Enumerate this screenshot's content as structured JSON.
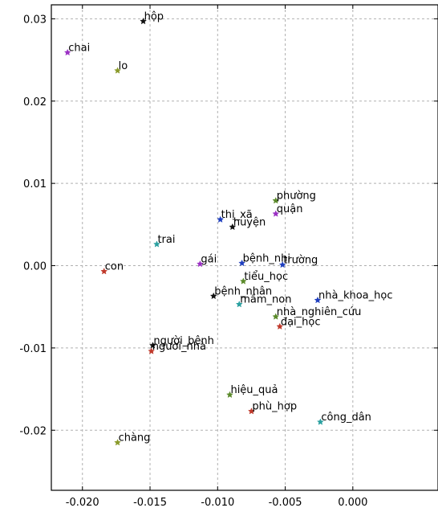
{
  "chart_data": {
    "type": "scatter",
    "title": "",
    "xlabel": "",
    "ylabel": "",
    "xlim": [
      -0.0223,
      0.0063
    ],
    "ylim": [
      -0.0273,
      0.0317
    ],
    "grid": true,
    "xticks": [
      {
        "value": -0.02,
        "label": "-0.020"
      },
      {
        "value": -0.015,
        "label": "-0.015"
      },
      {
        "value": -0.01,
        "label": "-0.010"
      },
      {
        "value": -0.005,
        "label": "-0.005"
      },
      {
        "value": 0.0,
        "label": "0.000"
      }
    ],
    "yticks": [
      {
        "value": 0.03,
        "label": "0.03"
      },
      {
        "value": 0.02,
        "label": "0.02"
      },
      {
        "value": 0.01,
        "label": "0.01"
      },
      {
        "value": 0.0,
        "label": "0.00"
      },
      {
        "value": -0.01,
        "label": "-0.01"
      },
      {
        "value": -0.02,
        "label": "-0.02"
      }
    ],
    "points": [
      {
        "label": "hộp",
        "x": -0.0155,
        "y": 0.0297,
        "color": "#111111"
      },
      {
        "label": "chai",
        "x": -0.0211,
        "y": 0.0259,
        "color": "#9b30c4"
      },
      {
        "label": "lo",
        "x": -0.0174,
        "y": 0.0237,
        "color": "#8a9a2a"
      },
      {
        "label": "phường",
        "x": -0.0057,
        "y": 0.0079,
        "color": "#5a8a2a"
      },
      {
        "label": "quận",
        "x": -0.0057,
        "y": 0.0063,
        "color": "#9b30c4"
      },
      {
        "label": "thị_xã",
        "x": -0.0098,
        "y": 0.0056,
        "color": "#1f3fbf"
      },
      {
        "label": "huyện",
        "x": -0.0089,
        "y": 0.0047,
        "color": "#111111"
      },
      {
        "label": "trai",
        "x": -0.0145,
        "y": 0.0026,
        "color": "#2aa0a0"
      },
      {
        "label": "gái",
        "x": -0.0113,
        "y": 0.0002,
        "color": "#9b30c4"
      },
      {
        "label": "bệnh_nhi",
        "x": -0.0082,
        "y": 0.0003,
        "color": "#1f3fbf"
      },
      {
        "label": "trường",
        "x": -0.0052,
        "y": 0.0001,
        "color": "#1f3fbf"
      },
      {
        "label": "con",
        "x": -0.0184,
        "y": -0.0007,
        "color": "#c0392b"
      },
      {
        "label": "tiểu_học",
        "x": -0.0081,
        "y": -0.0019,
        "color": "#5a8a2a"
      },
      {
        "label": "bệnh_nhân",
        "x": -0.0103,
        "y": -0.0037,
        "color": "#111111"
      },
      {
        "label": "mầm_non",
        "x": -0.0084,
        "y": -0.0047,
        "color": "#2aa0a0"
      },
      {
        "label": "nhà_khoa_học",
        "x": -0.0026,
        "y": -0.0042,
        "color": "#1f3fbf"
      },
      {
        "label": "nhà_nghiên_cứu",
        "x": -0.0057,
        "y": -0.0062,
        "color": "#5a8a2a"
      },
      {
        "label": "đại_học",
        "x": -0.0054,
        "y": -0.0074,
        "color": "#c0392b"
      },
      {
        "label": "người_bệnh",
        "x": -0.0148,
        "y": -0.0097,
        "color": "#111111"
      },
      {
        "label": "người_nhà",
        "x": -0.0149,
        "y": -0.0104,
        "color": "#c0392b"
      },
      {
        "label": "hiệu_quả",
        "x": -0.0091,
        "y": -0.0157,
        "color": "#5a8a2a"
      },
      {
        "label": "phù_hợp",
        "x": -0.0075,
        "y": -0.0177,
        "color": "#c0392b"
      },
      {
        "label": "công_dân",
        "x": -0.0024,
        "y": -0.019,
        "color": "#2aa0a0"
      },
      {
        "label": "chàng",
        "x": -0.0174,
        "y": -0.0215,
        "color": "#8a9a2a"
      }
    ]
  }
}
